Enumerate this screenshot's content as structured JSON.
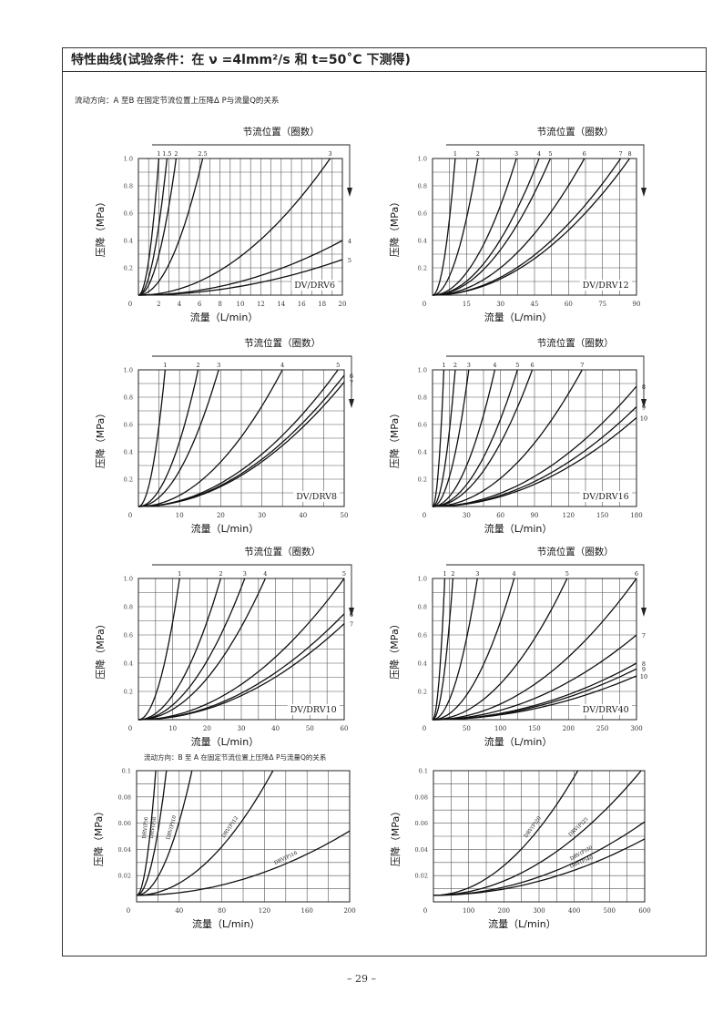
{
  "page": {
    "title": "特性曲线(试验条件：在 ν =4lmm²/s 和 t=50˚C 下测得)",
    "caption_ab": "流动方向：A 至B 在固定节流位置上压降Δ P与流量Q的关系",
    "caption_ba": "流动方向：B 至 A 在固定节流位置上压降Δ P与流量Q的关系",
    "page_number": "– 29 –"
  },
  "chart_data": [
    {
      "type": "line",
      "title": "节流位置（圈数）",
      "model_label": "DV/DRV6",
      "xlabel": "流量（L/min）",
      "ylabel": "压降（MPa）",
      "xlim": [
        0,
        20
      ],
      "ylim": [
        0,
        1.0
      ],
      "x_ticks": [
        "0",
        "2",
        "4",
        "6",
        "8",
        "10",
        "12",
        "14",
        "16",
        "18",
        "20"
      ],
      "y_ticks": [
        "0",
        "0.2",
        "0.4",
        "0.6",
        "0.8",
        "1.0"
      ],
      "series": [
        {
          "name": "1",
          "x": [
            0,
            2.0
          ],
          "y": [
            0,
            1.0
          ]
        },
        {
          "name": "1.5",
          "x": [
            0,
            2.8
          ],
          "y": [
            0,
            1.0
          ]
        },
        {
          "name": "2",
          "x": [
            0,
            3.7
          ],
          "y": [
            0,
            1.0
          ]
        },
        {
          "name": "2.5",
          "x": [
            0,
            6.3
          ],
          "y": [
            0,
            1.0
          ]
        },
        {
          "name": "3",
          "x": [
            0,
            18.8
          ],
          "y": [
            0,
            1.0
          ]
        },
        {
          "name": "4",
          "x": [
            0,
            20
          ],
          "y": [
            0,
            0.4
          ]
        },
        {
          "name": "5",
          "x": [
            0,
            20
          ],
          "y": [
            0,
            0.26
          ]
        }
      ]
    },
    {
      "type": "line",
      "title": "节流位置（圈数）",
      "model_label": "DV/DRV12",
      "xlabel": "流量（L/min）",
      "ylabel": "压降（MPa）",
      "xlim": [
        0,
        90
      ],
      "ylim": [
        0,
        1.0
      ],
      "x_ticks": [
        "0",
        "15",
        "30",
        "45",
        "60",
        "75",
        "90"
      ],
      "y_ticks": [
        "0",
        "0.2",
        "0.4",
        "0.6",
        "0.8",
        "1.0"
      ],
      "series": [
        {
          "name": "1",
          "x": [
            0,
            10
          ],
          "y": [
            0,
            1.0
          ]
        },
        {
          "name": "2",
          "x": [
            0,
            20
          ],
          "y": [
            0,
            1.0
          ]
        },
        {
          "name": "3",
          "x": [
            0,
            37
          ],
          "y": [
            0,
            1.0
          ]
        },
        {
          "name": "4",
          "x": [
            0,
            47
          ],
          "y": [
            0,
            1.0
          ]
        },
        {
          "name": "5",
          "x": [
            0,
            52
          ],
          "y": [
            0,
            1.0
          ]
        },
        {
          "name": "6",
          "x": [
            0,
            67
          ],
          "y": [
            0,
            1.0
          ]
        },
        {
          "name": "7",
          "x": [
            0,
            83
          ],
          "y": [
            0,
            1.0
          ]
        },
        {
          "name": "8",
          "x": [
            0,
            87
          ],
          "y": [
            0,
            1.0
          ]
        }
      ]
    },
    {
      "type": "line",
      "title": "节流位置（圈数）",
      "model_label": "DV/DRV8",
      "xlabel": "流量（L/min）",
      "ylabel": "压降（MPa）",
      "xlim": [
        0,
        50
      ],
      "ylim": [
        0,
        1.0
      ],
      "x_ticks": [
        "0",
        "10",
        "20",
        "30",
        "40",
        "50"
      ],
      "y_ticks": [
        "0",
        "0.2",
        "0.4",
        "0.6",
        "0.8",
        "1.0"
      ],
      "series": [
        {
          "name": "1",
          "x": [
            0,
            6.5
          ],
          "y": [
            0,
            1.0
          ]
        },
        {
          "name": "2",
          "x": [
            0,
            14.5
          ],
          "y": [
            0,
            1.0
          ]
        },
        {
          "name": "3",
          "x": [
            0,
            19.5
          ],
          "y": [
            0,
            1.0
          ]
        },
        {
          "name": "4",
          "x": [
            0,
            35
          ],
          "y": [
            0,
            1.0
          ]
        },
        {
          "name": "5",
          "x": [
            0,
            48.5
          ],
          "y": [
            0,
            1.0
          ]
        },
        {
          "name": "6",
          "x": [
            0,
            50
          ],
          "y": [
            0,
            0.96
          ]
        },
        {
          "name": "7",
          "x": [
            0,
            50
          ],
          "y": [
            0,
            0.91
          ]
        }
      ]
    },
    {
      "type": "line",
      "title": "节流位置（圈数）",
      "model_label": "DV/DRV16",
      "xlabel": "流量（L/min）",
      "ylabel": "压降（MPa）",
      "xlim": [
        0,
        180
      ],
      "ylim": [
        0,
        1.0
      ],
      "x_ticks": [
        "0",
        "30",
        "60",
        "90",
        "120",
        "150",
        "180"
      ],
      "y_ticks": [
        "0",
        "0.2",
        "0.4",
        "0.6",
        "0.8",
        "1.0"
      ],
      "series": [
        {
          "name": "1",
          "x": [
            0,
            10
          ],
          "y": [
            0,
            1.0
          ]
        },
        {
          "name": "2",
          "x": [
            0,
            20
          ],
          "y": [
            0,
            1.0
          ]
        },
        {
          "name": "3",
          "x": [
            0,
            32
          ],
          "y": [
            0,
            1.0
          ]
        },
        {
          "name": "4",
          "x": [
            0,
            55
          ],
          "y": [
            0,
            1.0
          ]
        },
        {
          "name": "5",
          "x": [
            0,
            75
          ],
          "y": [
            0,
            1.0
          ]
        },
        {
          "name": "6",
          "x": [
            0,
            88
          ],
          "y": [
            0,
            1.0
          ]
        },
        {
          "name": "7",
          "x": [
            0,
            132
          ],
          "y": [
            0,
            1.0
          ]
        },
        {
          "name": "8",
          "x": [
            0,
            180
          ],
          "y": [
            0,
            0.88
          ]
        },
        {
          "name": "9",
          "x": [
            0,
            180
          ],
          "y": [
            0,
            0.73
          ]
        },
        {
          "name": "10",
          "x": [
            0,
            180
          ],
          "y": [
            0,
            0.65
          ]
        }
      ]
    },
    {
      "type": "line",
      "title": "节流位置（圈数）",
      "model_label": "DV/DRV10",
      "xlabel": "流量（L/min）",
      "ylabel": "压降（MPa）",
      "xlim": [
        0,
        60
      ],
      "ylim": [
        0,
        1.0
      ],
      "x_ticks": [
        "0",
        "10",
        "20",
        "30",
        "40",
        "50",
        "60"
      ],
      "y_ticks": [
        "0",
        "0.2",
        "0.4",
        "0.6",
        "0.8",
        "1.0"
      ],
      "series": [
        {
          "name": "1",
          "x": [
            0,
            12
          ],
          "y": [
            0,
            1.0
          ]
        },
        {
          "name": "2",
          "x": [
            0,
            24
          ],
          "y": [
            0,
            1.0
          ]
        },
        {
          "name": "3",
          "x": [
            0,
            31
          ],
          "y": [
            0,
            1.0
          ]
        },
        {
          "name": "4",
          "x": [
            0,
            37
          ],
          "y": [
            0,
            1.0
          ]
        },
        {
          "name": "5",
          "x": [
            0,
            60
          ],
          "y": [
            0,
            1.0
          ]
        },
        {
          "name": "6",
          "x": [
            0,
            60
          ],
          "y": [
            0,
            0.75
          ]
        },
        {
          "name": "7",
          "x": [
            0,
            60
          ],
          "y": [
            0,
            0.68
          ]
        }
      ]
    },
    {
      "type": "line",
      "title": "节流位置（圈数）",
      "model_label": "DV/DRV40",
      "xlabel": "流量（L/min）",
      "ylabel": "压降（MPa）",
      "xlim": [
        0,
        300
      ],
      "ylim": [
        0,
        1.0
      ],
      "x_ticks": [
        "0",
        "50",
        "100",
        "150",
        "200",
        "250",
        "300"
      ],
      "y_ticks": [
        "0",
        "0.2",
        "0.4",
        "0.6",
        "0.8",
        "1.0"
      ],
      "series": [
        {
          "name": "1",
          "x": [
            0,
            18
          ],
          "y": [
            0,
            1.0
          ]
        },
        {
          "name": "2",
          "x": [
            0,
            30
          ],
          "y": [
            0,
            1.0
          ]
        },
        {
          "name": "3",
          "x": [
            0,
            66
          ],
          "y": [
            0,
            1.0
          ]
        },
        {
          "name": "4",
          "x": [
            0,
            120
          ],
          "y": [
            0,
            1.0
          ]
        },
        {
          "name": "5",
          "x": [
            0,
            198
          ],
          "y": [
            0,
            1.0
          ]
        },
        {
          "name": "6",
          "x": [
            0,
            300
          ],
          "y": [
            0,
            1.0
          ]
        },
        {
          "name": "7",
          "x": [
            0,
            300
          ],
          "y": [
            0,
            0.6
          ]
        },
        {
          "name": "8",
          "x": [
            0,
            300
          ],
          "y": [
            0,
            0.4
          ]
        },
        {
          "name": "9",
          "x": [
            0,
            300
          ],
          "y": [
            0,
            0.36
          ]
        },
        {
          "name": "10",
          "x": [
            0,
            300
          ],
          "y": [
            0,
            0.31
          ]
        }
      ]
    },
    {
      "type": "line",
      "xlabel": "流量（L/min）",
      "ylabel": "压降（MPa）",
      "xlim": [
        0,
        200
      ],
      "ylim": [
        0,
        0.1
      ],
      "x_ticks": [
        "0",
        "40",
        "80",
        "120",
        "160",
        "200"
      ],
      "y_ticks": [
        "0",
        "0.02",
        "0.04",
        "0.06",
        "0.08",
        "0.1"
      ],
      "series": [
        {
          "name": "DRV(P)6",
          "x": [
            0,
            18
          ],
          "y": [
            0.005,
            0.1
          ]
        },
        {
          "name": "DRV(P)8",
          "x": [
            0,
            28
          ],
          "y": [
            0.005,
            0.1
          ]
        },
        {
          "name": "DRV(P)10",
          "x": [
            0,
            52
          ],
          "y": [
            0.005,
            0.1
          ]
        },
        {
          "name": "DRV(P)12",
          "x": [
            0,
            128
          ],
          "y": [
            0.005,
            0.1
          ]
        },
        {
          "name": "DRV(P)16",
          "x": [
            0,
            200
          ],
          "y": [
            0.005,
            0.054
          ]
        }
      ]
    },
    {
      "type": "line",
      "xlabel": "流量（L/min）",
      "ylabel": "压降（MPa）",
      "xlim": [
        0,
        600
      ],
      "ylim": [
        0,
        0.1
      ],
      "x_ticks": [
        "0",
        "100",
        "200",
        "300",
        "400",
        "500",
        "600"
      ],
      "y_ticks": [
        "0",
        "0.02",
        "0.04",
        "0.06",
        "0.08",
        "0.1"
      ],
      "series": [
        {
          "name": "DRV(P)20",
          "x": [
            0,
            410
          ],
          "y": [
            0.005,
            0.1
          ]
        },
        {
          "name": "DRV(P)25",
          "x": [
            0,
            590
          ],
          "y": [
            0.005,
            0.1
          ]
        },
        {
          "name": "DRV(P)30",
          "x": [
            0,
            600
          ],
          "y": [
            0.005,
            0.061
          ]
        },
        {
          "name": "DRV(P)40",
          "x": [
            0,
            600
          ],
          "y": [
            0.005,
            0.048
          ]
        }
      ]
    }
  ]
}
